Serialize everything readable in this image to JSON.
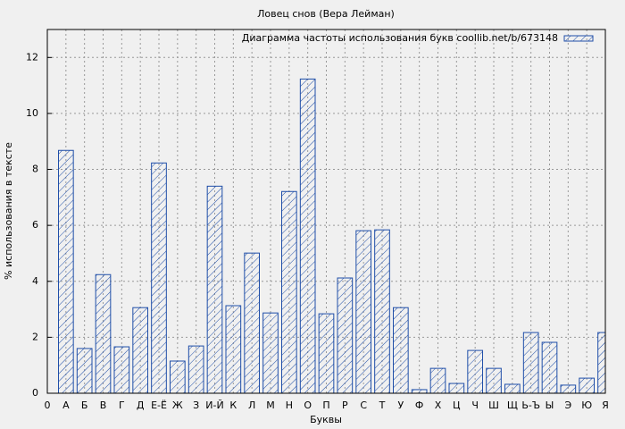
{
  "chart_data": {
    "type": "bar",
    "title": "Ловец снов (Вера Лейман)",
    "x_label": "Буквы",
    "y_label": "% использования в тексте",
    "series": [
      {
        "name": "Диаграмма частоты использования букв coollib.net/b/673148",
        "color": "#1f4ea8",
        "values": [
          null,
          8.68,
          1.6,
          4.24,
          1.66,
          3.06,
          8.23,
          1.15,
          1.69,
          7.4,
          3.13,
          5.01,
          2.87,
          7.21,
          11.23,
          2.84,
          4.12,
          5.81,
          5.84,
          3.06,
          0.13,
          0.89,
          0.35,
          1.53,
          0.89,
          0.32,
          2.17,
          1.82,
          0.29,
          0.54,
          2.17
        ]
      }
    ],
    "categories": [
      "0",
      "А",
      "Б",
      "В",
      "Г",
      "Д",
      "Е-Ё",
      "Ж",
      "З",
      "И-Й",
      "К",
      "Л",
      "М",
      "Н",
      "О",
      "П",
      "Р",
      "С",
      "Т",
      "У",
      "Ф",
      "Х",
      "Ц",
      "Ч",
      "Ш",
      "Щ",
      "Ь-Ъ",
      "Ы",
      "Э",
      "Ю",
      "Я"
    ],
    "ylim": [
      0,
      13
    ],
    "yticks": [
      0,
      2,
      4,
      6,
      8,
      10,
      12
    ],
    "grid": true,
    "legend": "top-right",
    "hatch": true
  }
}
